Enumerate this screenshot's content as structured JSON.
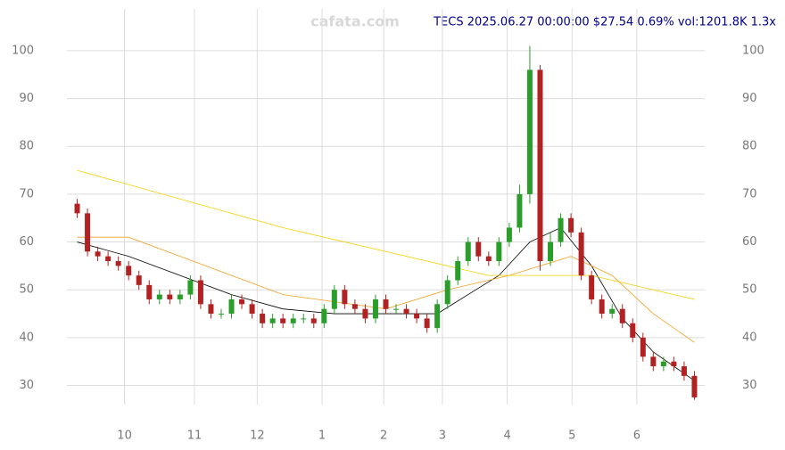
{
  "chart_data": {
    "type": "candlestick",
    "title": "TECS 2025.06.27 00:00:00 $27.54 0.69% vol:1201.8K 1.3x",
    "watermark": "cafata.com",
    "x": [
      0,
      1,
      2,
      3,
      4,
      5,
      6,
      7,
      8,
      9,
      10,
      11,
      12,
      13,
      14,
      15,
      16,
      17,
      18,
      19,
      20,
      21,
      22,
      23,
      24,
      25,
      26,
      27,
      28,
      29,
      30,
      31,
      32,
      33,
      34,
      35,
      36,
      37,
      38,
      39,
      40,
      41,
      42,
      43,
      44,
      45,
      46,
      47,
      48,
      49,
      50,
      51,
      52,
      53,
      54,
      55,
      56,
      57,
      58,
      59,
      60
    ],
    "open": [
      68,
      66,
      58,
      57,
      56,
      55,
      53,
      51,
      48,
      49,
      48,
      49,
      52,
      47,
      45,
      45,
      48,
      47,
      45,
      43,
      44,
      43,
      44,
      44,
      43,
      46,
      50,
      47,
      46,
      44,
      48,
      46,
      46,
      45,
      44,
      42,
      47,
      52,
      56,
      60,
      57,
      56,
      60,
      63,
      70,
      96,
      56,
      60,
      65,
      62,
      53,
      48,
      45,
      46,
      43,
      40,
      36,
      34,
      35,
      34,
      32
    ],
    "high": [
      69,
      67,
      59,
      58,
      57,
      56,
      54,
      52,
      50,
      50,
      50,
      53,
      53,
      48,
      46,
      49,
      49,
      48,
      46,
      45,
      45,
      45,
      45,
      45,
      47,
      51,
      51,
      48,
      47,
      49,
      49,
      47,
      47,
      46,
      45,
      48,
      53,
      57,
      61,
      61,
      58,
      61,
      64,
      72,
      101,
      97,
      62,
      66,
      66,
      63,
      54,
      49,
      47,
      47,
      44,
      41,
      37,
      36,
      36,
      35,
      33
    ],
    "low": [
      65,
      57,
      56,
      55,
      54,
      52,
      50,
      47,
      47,
      47,
      47,
      48,
      46,
      44,
      44,
      44,
      46,
      44,
      42,
      42,
      42,
      42,
      43,
      42,
      42,
      45,
      46,
      45,
      43,
      43,
      45,
      45,
      44,
      43,
      41,
      41,
      46,
      51,
      55,
      56,
      55,
      55,
      59,
      62,
      68,
      54,
      55,
      59,
      61,
      52,
      47,
      44,
      44,
      42,
      39,
      35,
      33,
      33,
      33,
      31,
      27
    ],
    "close": [
      66,
      58,
      57,
      56,
      55,
      53,
      51,
      48,
      49,
      48,
      49,
      52,
      47,
      45,
      45,
      48,
      47,
      45,
      43,
      44,
      43,
      44,
      44,
      43,
      46,
      50,
      47,
      46,
      44,
      48,
      46,
      46,
      45,
      44,
      42,
      47,
      52,
      56,
      60,
      57,
      56,
      60,
      63,
      70,
      96,
      56,
      60,
      65,
      62,
      53,
      48,
      45,
      46,
      43,
      40,
      36,
      34,
      35,
      34,
      32,
      27.5
    ],
    "up_color": "#2a9d2a",
    "down_color": "#b22222",
    "lines": [
      {
        "color": "#000000",
        "x": [
          0,
          5,
          10,
          15,
          20,
          25,
          30,
          35,
          38,
          41,
          44,
          47,
          50,
          53,
          56,
          60
        ],
        "values": [
          60,
          57,
          53,
          49,
          46,
          45,
          45,
          45,
          49,
          53,
          60,
          63,
          55,
          44,
          37,
          31
        ]
      },
      {
        "color": "#f0a020",
        "x": [
          0,
          5,
          10,
          20,
          30,
          36,
          42,
          48,
          52,
          56,
          60
        ],
        "values": [
          61,
          61,
          57,
          49,
          46,
          50,
          53,
          57,
          53,
          45,
          39
        ]
      },
      {
        "color": "#f5d000",
        "x": [
          0,
          10,
          20,
          30,
          40,
          50,
          60
        ],
        "values": [
          75,
          69,
          63,
          58,
          53,
          53,
          48
        ]
      }
    ],
    "xlim": [
      -1,
      61
    ],
    "xticks": [
      {
        "value": 4.6,
        "label": "10"
      },
      {
        "value": 11.4,
        "label": "11"
      },
      {
        "value": 17.5,
        "label": "12"
      },
      {
        "value": 23.8,
        "label": "1"
      },
      {
        "value": 29.8,
        "label": "2"
      },
      {
        "value": 35.5,
        "label": "3"
      },
      {
        "value": 41.8,
        "label": "4"
      },
      {
        "value": 48.1,
        "label": "5"
      },
      {
        "value": 54.4,
        "label": "6"
      }
    ],
    "ylim": [
      26,
      108
    ],
    "yticks": [
      30,
      40,
      50,
      60,
      70,
      80,
      90,
      100
    ],
    "grid": true
  }
}
